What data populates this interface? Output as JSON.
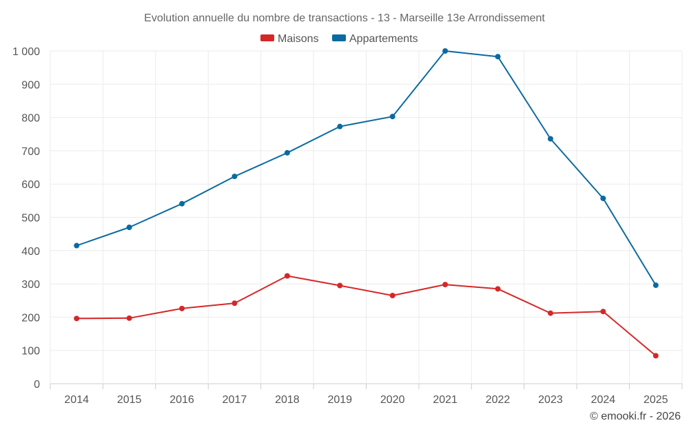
{
  "chart_data": {
    "type": "line",
    "title": "Evolution annuelle du nombre de transactions - 13 - Marseille 13e Arrondissement",
    "categories": [
      "2014",
      "2015",
      "2016",
      "2017",
      "2018",
      "2019",
      "2020",
      "2021",
      "2022",
      "2023",
      "2024",
      "2025"
    ],
    "ylim": [
      0,
      1000
    ],
    "yticks": [
      0,
      100,
      200,
      300,
      400,
      500,
      600,
      700,
      800,
      900,
      1000
    ],
    "ytick_labels": [
      "0",
      "100",
      "200",
      "300",
      "400",
      "500",
      "600",
      "700",
      "800",
      "900",
      "1 000"
    ],
    "grid": true,
    "legend_position": "top-center",
    "series": [
      {
        "name": "Maisons",
        "color": "#d62728",
        "values": [
          196,
          197,
          226,
          242,
          324,
          295,
          265,
          298,
          285,
          212,
          217,
          84
        ]
      },
      {
        "name": "Appartements",
        "color": "#0a6aa1",
        "values": [
          415,
          470,
          541,
          623,
          694,
          773,
          803,
          1000,
          983,
          736,
          557,
          296
        ]
      }
    ],
    "credit": "© emooki.fr - 2026"
  }
}
